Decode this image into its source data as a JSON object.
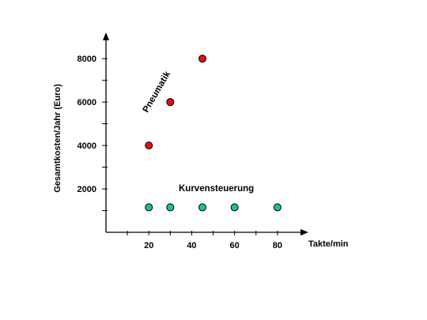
{
  "chart_data": {
    "type": "scatter",
    "title": "",
    "xlabel": "Takte/min",
    "ylabel": "Gesamtkosten/Jahr (Euro)",
    "xlim": [
      0,
      90
    ],
    "ylim": [
      0,
      8700
    ],
    "x_ticks": [
      10,
      20,
      30,
      40,
      50,
      60,
      70,
      80
    ],
    "x_tick_labels": [
      {
        "value": 20,
        "label": "20"
      },
      {
        "value": 40,
        "label": "40"
      },
      {
        "value": 60,
        "label": "60"
      },
      {
        "value": 80,
        "label": "80"
      }
    ],
    "y_ticks": [
      1000,
      2000,
      3000,
      4000,
      5000,
      6000,
      7000,
      8000
    ],
    "y_tick_labels": [
      {
        "value": 2000,
        "label": "2000"
      },
      {
        "value": 4000,
        "label": "4000"
      },
      {
        "value": 6000,
        "label": "6000"
      },
      {
        "value": 8000,
        "label": "8000"
      }
    ],
    "grid": false,
    "legend": "none",
    "series": [
      {
        "name": "Pneumatik",
        "color": "#e01010",
        "points": [
          {
            "x": 20,
            "y": 4000
          },
          {
            "x": 30,
            "y": 6000
          },
          {
            "x": 45,
            "y": 8000
          }
        ]
      },
      {
        "name": "Kurvensteuerung",
        "color": "#1fbf8f",
        "points": [
          {
            "x": 20,
            "y": 1150
          },
          {
            "x": 30,
            "y": 1150
          },
          {
            "x": 45,
            "y": 1150
          },
          {
            "x": 60,
            "y": 1150
          },
          {
            "x": 80,
            "y": 1150
          }
        ]
      }
    ]
  }
}
